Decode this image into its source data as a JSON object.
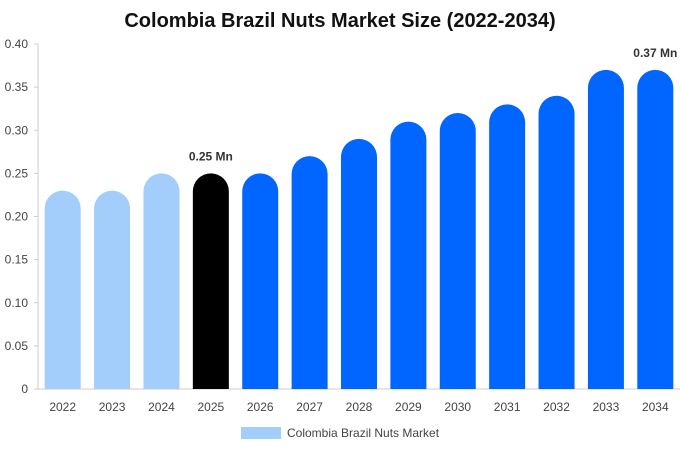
{
  "chart_data": {
    "type": "bar",
    "title": "Colombia Brazil Nuts Market Size (2022-2034)",
    "xlabel": "",
    "ylabel": "",
    "categories": [
      "2022",
      "2023",
      "2024",
      "2025",
      "2026",
      "2027",
      "2028",
      "2029",
      "2030",
      "2031",
      "2032",
      "2033",
      "2034"
    ],
    "series": [
      {
        "name": "Colombia Brazil Nuts Market",
        "values": [
          0.23,
          0.23,
          0.25,
          0.25,
          0.25,
          0.27,
          0.29,
          0.31,
          0.32,
          0.33,
          0.34,
          0.37,
          0.37
        ]
      }
    ],
    "ylim": [
      0,
      0.4
    ],
    "yticks": [
      "0",
      "0.05",
      "0.10",
      "0.15",
      "0.20",
      "0.25",
      "0.30",
      "0.35",
      "0.40"
    ],
    "data_labels": [
      {
        "category": "2025",
        "text": "0.25 Mn"
      },
      {
        "category": "2034",
        "text": "0.37 Mn"
      }
    ],
    "bar_colors": {
      "historical": "#a3cdfb",
      "base_year": "#000000",
      "forecast": "#0066ff"
    },
    "bar_color_by_category": [
      "historical",
      "historical",
      "historical",
      "base_year",
      "forecast",
      "forecast",
      "forecast",
      "forecast",
      "forecast",
      "forecast",
      "forecast",
      "forecast",
      "forecast"
    ],
    "legend": {
      "position": "bottom-center",
      "color": "#a3cdfb"
    },
    "grid": false
  }
}
